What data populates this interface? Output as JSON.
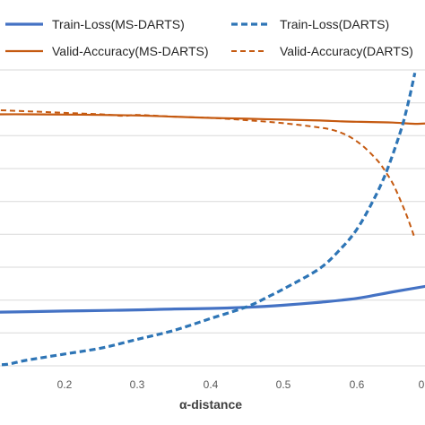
{
  "chart_data": {
    "type": "line",
    "title": "",
    "xlabel": "α-distance",
    "ylabel": "",
    "x_ticks": [
      "0.2",
      "0.3",
      "0.4",
      "0.5",
      "0.6",
      "0"
    ],
    "xlim": [
      0.1,
      0.7
    ],
    "ylim": [
      0,
      1
    ],
    "grid": true,
    "legend_placement": "top",
    "colors": {
      "ms_darts": "#4472c4",
      "darts_loss": "#2e75b6",
      "accuracy": "#c55a11",
      "grid": "#d9d9d9"
    },
    "series": [
      {
        "name": "Train-Loss(MS-DARTS)",
        "style": "solid",
        "x": [
          0.1,
          0.15,
          0.2,
          0.25,
          0.3,
          0.35,
          0.4,
          0.45,
          0.5,
          0.55,
          0.6,
          0.65,
          0.7
        ],
        "y": [
          0.181,
          0.183,
          0.185,
          0.187,
          0.189,
          0.192,
          0.194,
          0.198,
          0.205,
          0.215,
          0.228,
          0.25,
          0.271
        ]
      },
      {
        "name": "Train-Loss(DARTS)",
        "style": "dashed",
        "x": [
          0.1,
          0.12,
          0.15,
          0.2,
          0.25,
          0.3,
          0.35,
          0.4,
          0.45,
          0.48,
          0.5,
          0.55,
          0.58,
          0.6,
          0.62,
          0.64,
          0.66,
          0.67,
          0.68
        ],
        "y": [
          0.005,
          0.005,
          0.02,
          0.04,
          0.06,
          0.09,
          0.12,
          0.16,
          0.2,
          0.235,
          0.26,
          0.33,
          0.4,
          0.46,
          0.545,
          0.65,
          0.79,
          0.88,
          0.99
        ]
      },
      {
        "name": "Valid-Accuracy(MS-DARTS)",
        "style": "solid",
        "x": [
          0.1,
          0.15,
          0.2,
          0.25,
          0.3,
          0.35,
          0.4,
          0.45,
          0.5,
          0.55,
          0.58,
          0.6,
          0.62,
          0.65,
          0.68,
          0.7
        ],
        "y": [
          0.85,
          0.85,
          0.849,
          0.848,
          0.846,
          0.842,
          0.838,
          0.835,
          0.832,
          0.829,
          0.826,
          0.825,
          0.824,
          0.822,
          0.818,
          0.82
        ]
      },
      {
        "name": "Valid-Accuracy(DARTS)",
        "style": "dashed",
        "x": [
          0.1,
          0.15,
          0.2,
          0.25,
          0.28,
          0.3,
          0.35,
          0.4,
          0.45,
          0.5,
          0.55,
          0.57,
          0.59,
          0.61,
          0.63,
          0.64,
          0.65,
          0.66,
          0.67,
          0.68
        ],
        "y": [
          0.865,
          0.86,
          0.855,
          0.85,
          0.845,
          0.848,
          0.842,
          0.838,
          0.83,
          0.82,
          0.805,
          0.795,
          0.775,
          0.74,
          0.69,
          0.655,
          0.615,
          0.56,
          0.5,
          0.43
        ]
      }
    ]
  }
}
